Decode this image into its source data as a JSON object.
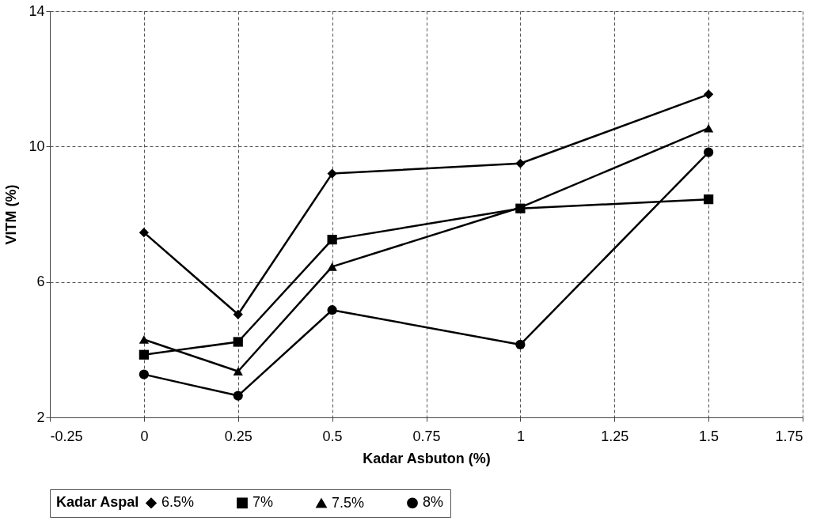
{
  "chart_data": {
    "type": "line",
    "xlabel": "Kadar Asbuton (%)",
    "ylabel": "VITM (%)",
    "legend_title": "Kadar Aspal",
    "x": [
      0,
      0.25,
      0.5,
      1,
      1.5
    ],
    "xlim": [
      -0.25,
      1.75
    ],
    "xticks": [
      -0.25,
      0,
      0.25,
      0.5,
      0.75,
      1,
      1.25,
      1.5,
      1.75
    ],
    "ylim": [
      2,
      14
    ],
    "yticks": [
      2,
      6,
      10,
      14
    ],
    "grid": true,
    "legend": "bottom",
    "line_style": "solid",
    "series": [
      {
        "name": "6.5%",
        "color": "#000000",
        "marker": "diamond",
        "values": [
          7.46,
          5.04,
          9.2,
          9.5,
          11.54
        ]
      },
      {
        "name": "7%",
        "color": "#000000",
        "marker": "square",
        "values": [
          3.85,
          4.23,
          7.25,
          8.17,
          8.44
        ]
      },
      {
        "name": "7.5%",
        "color": "#000000",
        "marker": "triangle",
        "values": [
          4.3,
          3.36,
          6.45,
          8.2,
          10.54
        ]
      },
      {
        "name": "8%",
        "color": "#000000",
        "marker": "circle",
        "values": [
          3.27,
          2.64,
          5.17,
          4.15,
          9.83
        ]
      }
    ]
  }
}
